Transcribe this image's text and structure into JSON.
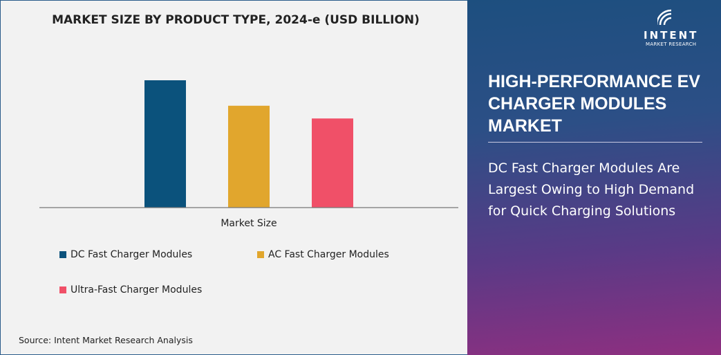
{
  "chart_data": {
    "type": "bar",
    "title": "MARKET SIZE BY PRODUCT TYPE, 2024-e (USD BILLION)",
    "xlabel": "Market Size",
    "categories": [
      "Market Size"
    ],
    "series": [
      {
        "name": "DC Fast Charger Modules",
        "values": [
          1.0
        ],
        "color": "#0b527c"
      },
      {
        "name": "AC Fast Charger Modules",
        "values": [
          0.8
        ],
        "color": "#e1a62d"
      },
      {
        "name": "Ultra-Fast Charger Modules",
        "values": [
          0.7
        ],
        "color": "#f05068"
      }
    ],
    "ylim": [
      0,
      1.0
    ],
    "grid": false,
    "legend": "bottom"
  },
  "source": "Source: Intent Market Research Analysis",
  "panel": {
    "title": "HIGH-PERFORMANCE EV CHARGER MODULES MARKET",
    "description": "DC Fast Charger Modules Are Largest Owing to High Demand for Quick Charging Solutions"
  },
  "logo": {
    "name": "INTENT",
    "tagline": "MARKET RESEARCH"
  }
}
